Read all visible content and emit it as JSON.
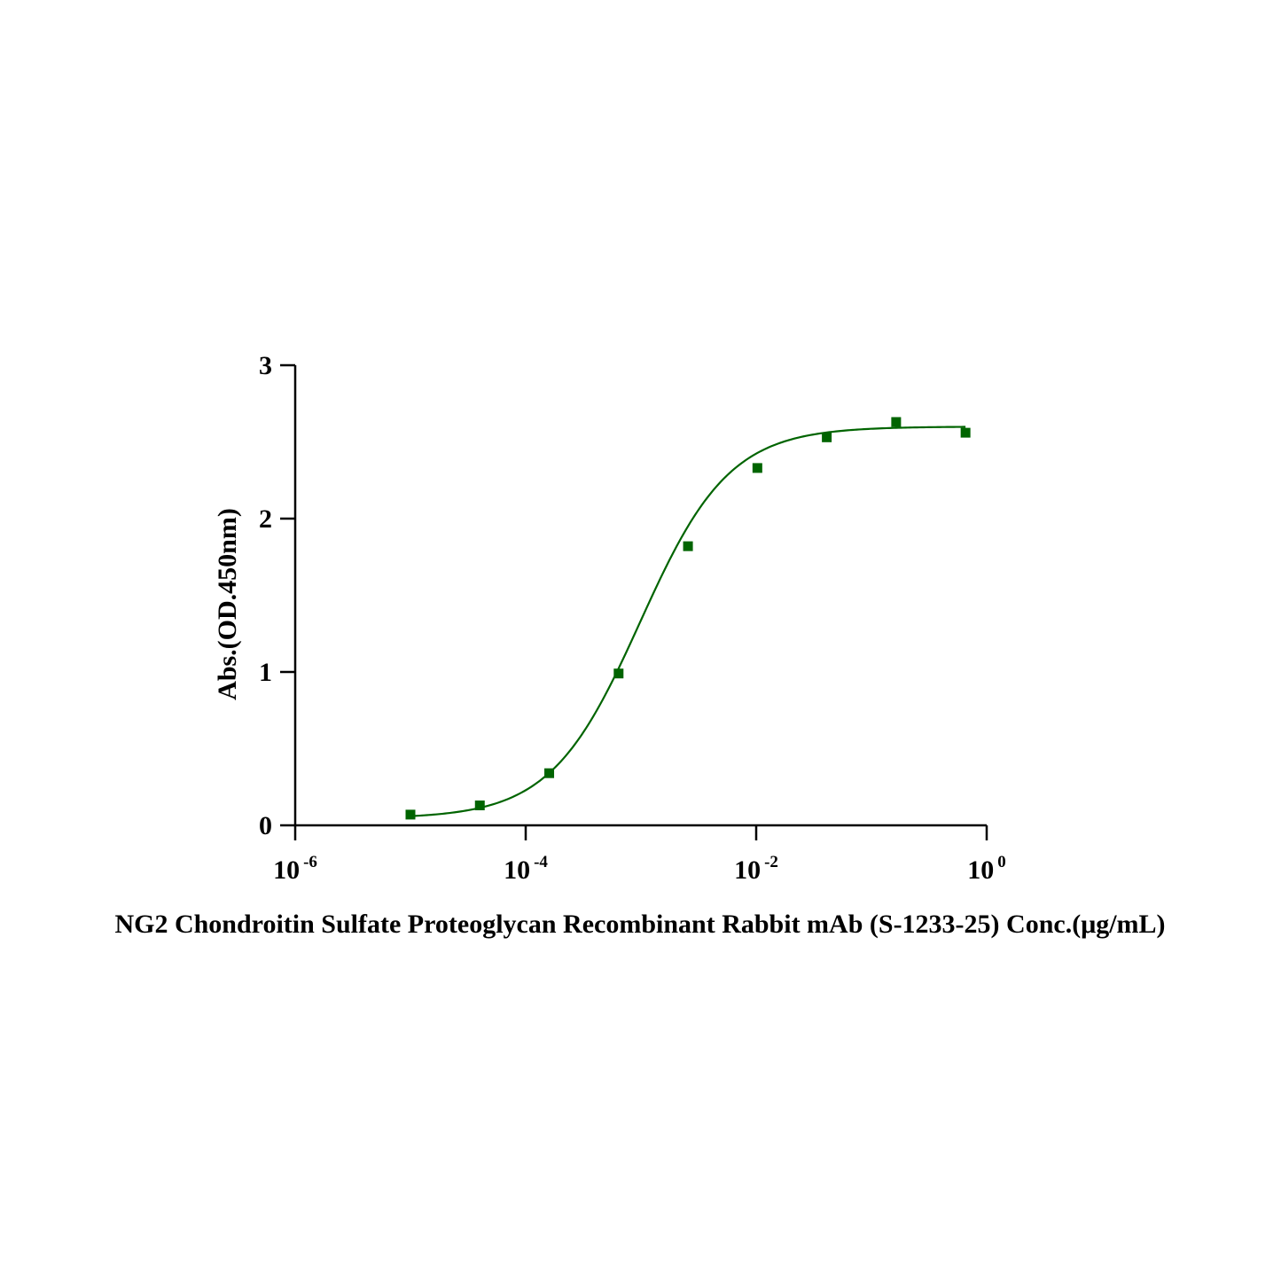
{
  "chart_data": {
    "type": "scatter",
    "title": "",
    "xlabel": "NG2 Chondroitin Sulfate Proteoglycan Recombinant Rabbit mAb (S-1233-25) Conc.(μg/mL)",
    "ylabel": "Abs.(OD.450nm)",
    "x_scale": "log",
    "xlim": [
      1e-06,
      1
    ],
    "ylim": [
      0,
      3
    ],
    "x_ticks": [
      {
        "base": "10",
        "exp": "-6",
        "value": 1e-06
      },
      {
        "base": "10",
        "exp": "-4",
        "value": 0.0001
      },
      {
        "base": "10",
        "exp": "-2",
        "value": 0.01
      },
      {
        "base": "10",
        "exp": "0",
        "value": 1
      }
    ],
    "y_ticks": [
      {
        "label": "0",
        "value": 0
      },
      {
        "label": "1",
        "value": 1
      },
      {
        "label": "2",
        "value": 2
      },
      {
        "label": "3",
        "value": 3
      }
    ],
    "grid": false,
    "legend": "none",
    "series": [
      {
        "color": "#006400",
        "marker": "square",
        "fit": "four-parameter logistic curve",
        "x": [
          1e-05,
          4e-05,
          0.00016,
          0.00064,
          0.00256,
          0.01024,
          0.04096,
          0.16384,
          0.65536
        ],
        "y": [
          0.07,
          0.13,
          0.34,
          0.99,
          1.82,
          2.33,
          2.53,
          2.63,
          2.56
        ]
      }
    ]
  }
}
